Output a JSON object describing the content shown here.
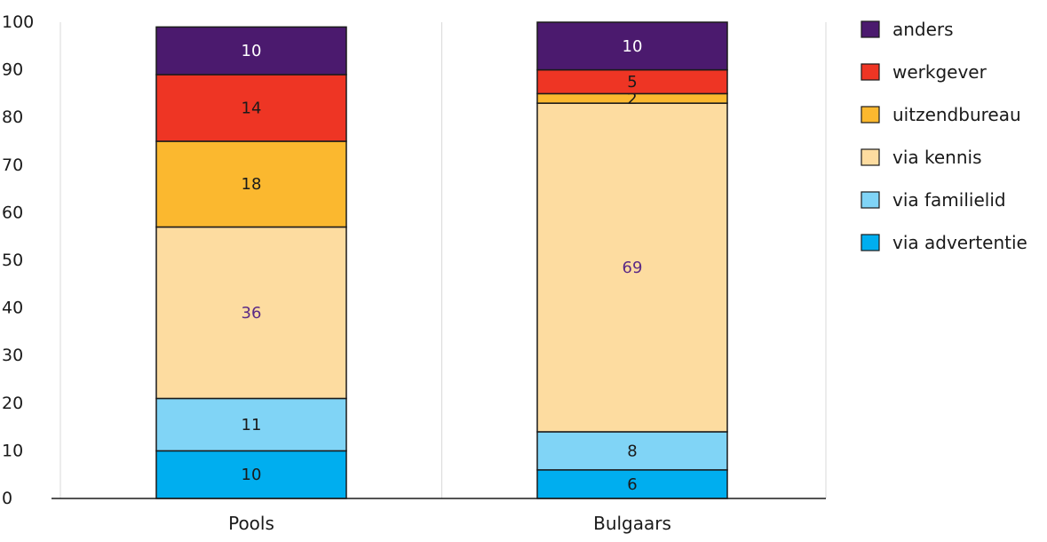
{
  "chart_data": {
    "type": "bar",
    "stacked": true,
    "categories": [
      "Pools",
      "Bulgaars"
    ],
    "series": [
      {
        "name": "via advertentie",
        "color": "#00aeef",
        "values": [
          10,
          6
        ],
        "labels": [
          "10",
          "6"
        ]
      },
      {
        "name": "via familielid",
        "color": "#80d4f6",
        "values": [
          11,
          8
        ],
        "labels": [
          "11",
          "8"
        ]
      },
      {
        "name": "via kennis",
        "color": "#fddca0",
        "values": [
          36,
          69
        ],
        "labels": [
          "36",
          "69"
        ],
        "label_color": "#5b2a86"
      },
      {
        "name": "uitzendbureau",
        "color": "#fbb82f",
        "values": [
          18,
          2
        ],
        "labels": [
          "18",
          "2"
        ]
      },
      {
        "name": "werkgever",
        "color": "#ee3524",
        "values": [
          14,
          5
        ],
        "labels": [
          "14",
          "5"
        ]
      },
      {
        "name": "anders",
        "color": "#4b1a6e",
        "values": [
          10,
          10
        ],
        "labels": [
          "10",
          "10"
        ],
        "label_color": "#ffffff"
      }
    ],
    "ylim": [
      0,
      100
    ],
    "yticks": [
      "0",
      "10",
      "20",
      "30",
      "40",
      "50",
      "60",
      "70",
      "80",
      "90",
      "100"
    ],
    "grid": "vertical-only",
    "legend_position": "right",
    "legend_order": [
      "anders",
      "werkgever",
      "uitzendbureau",
      "via kennis",
      "via familielid",
      "via advertentie"
    ],
    "xlabel": "",
    "ylabel": "",
    "title": ""
  }
}
